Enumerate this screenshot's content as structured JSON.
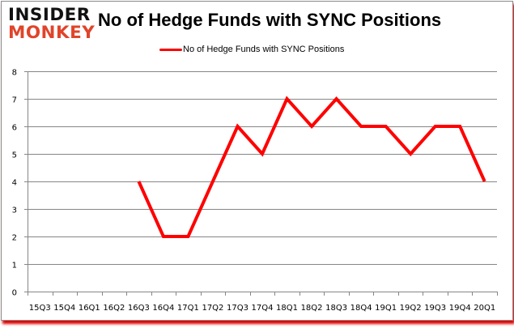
{
  "brand": {
    "line1": "INSIDER",
    "line2": "MONKEY"
  },
  "colors": {
    "series": "#ff0000",
    "grid": "#868686",
    "logo_dark": "#111111",
    "logo_red": "#e0442a",
    "shadow": "#e00000"
  },
  "chart_data": {
    "type": "line",
    "title": "No of Hedge Funds with SYNC Positions",
    "xlabel": "",
    "ylabel": "",
    "ylim": [
      0,
      8
    ],
    "yticks": [
      0,
      1,
      2,
      3,
      4,
      5,
      6,
      7,
      8
    ],
    "grid": true,
    "legend_position": "top",
    "categories": [
      "15Q3",
      "15Q4",
      "16Q1",
      "16Q2",
      "16Q3",
      "16Q4",
      "17Q1",
      "17Q2",
      "17Q3",
      "17Q4",
      "18Q1",
      "18Q2",
      "18Q3",
      "18Q4",
      "19Q1",
      "19Q2",
      "19Q3",
      "19Q4",
      "20Q1"
    ],
    "series": [
      {
        "name": "No of Hedge Funds with SYNC Positions",
        "color": "#ff0000",
        "values": [
          null,
          null,
          null,
          null,
          4,
          2,
          2,
          4,
          6,
          5,
          7,
          6,
          7,
          6,
          6,
          5,
          6,
          6,
          4
        ]
      }
    ]
  }
}
